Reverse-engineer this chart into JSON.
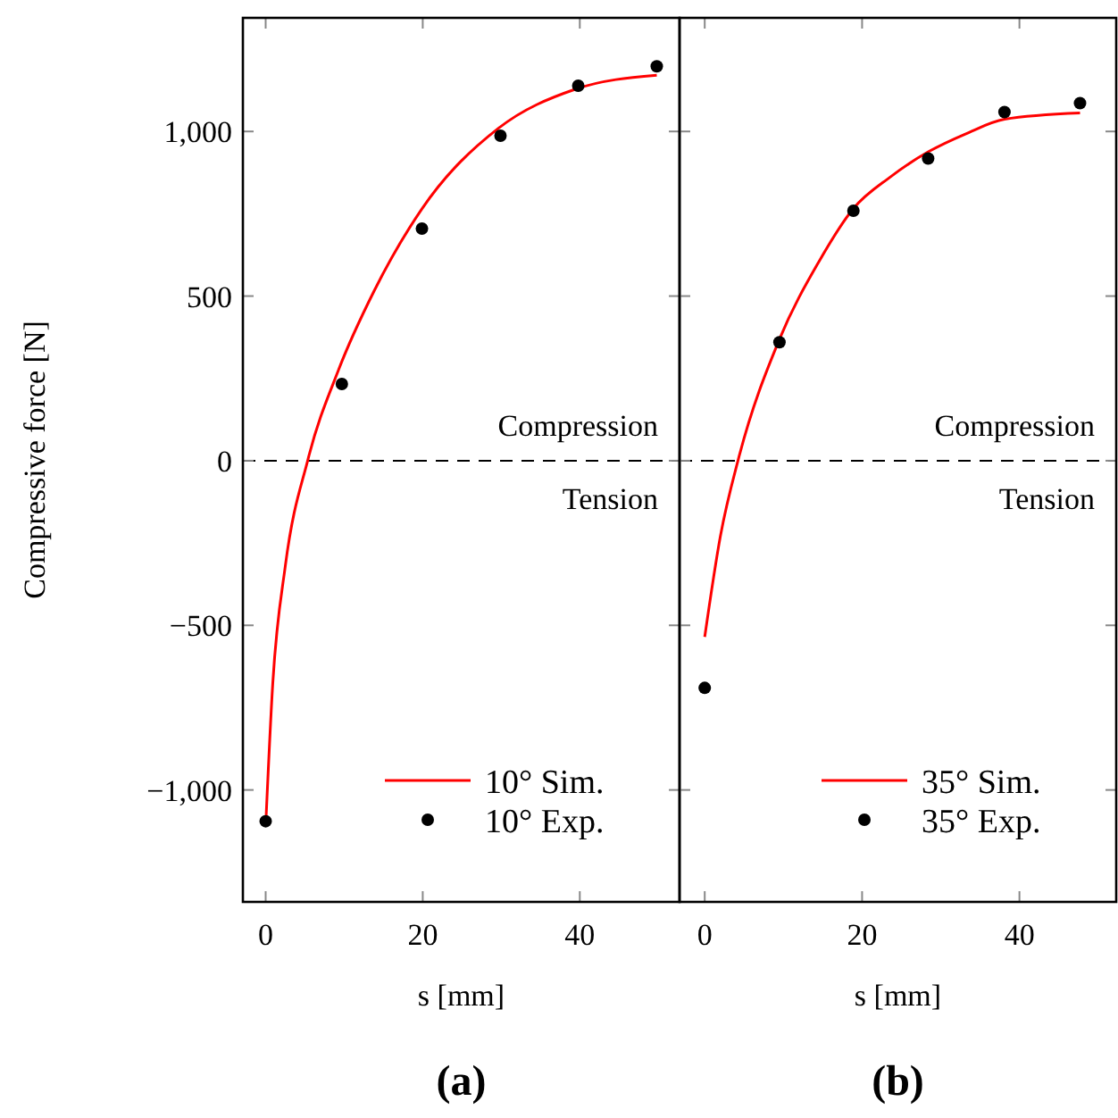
{
  "chart_data": [
    {
      "type": "line",
      "title": "(a)",
      "xlabel": "s [mm]",
      "ylabel": "Compressive force [N]",
      "xlim": [
        -2.9,
        52.7
      ],
      "xticks": [
        0,
        20,
        40
      ],
      "ylim": [
        -1340,
        1345
      ],
      "yticks": [
        {
          "value": -1000,
          "label": "−1,000"
        },
        {
          "value": -500,
          "label": "−500"
        },
        0,
        500,
        {
          "value": 1000,
          "label": "1,000"
        }
      ],
      "legend": "bottom right",
      "annotations": [
        "Compression",
        "Tension"
      ],
      "ref_lines": [
        {
          "axis": "y",
          "value": 0,
          "color": "#000000",
          "line_style": "dashed"
        }
      ],
      "series": [
        {
          "name": "10° Sim.",
          "color": "#ff0000",
          "line_style": "solid",
          "marker": "none",
          "x": [
            0,
            0.9,
            2.5,
            5.4,
            9.3,
            13.8,
            19.9,
            29.6,
            39.4,
            49.8
          ],
          "values": [
            -1112,
            -678,
            -320,
            5,
            277,
            515,
            765,
            1009,
            1128,
            1171
          ]
        },
        {
          "name": "10° Exp.",
          "type": "scatter",
          "color": "#000000",
          "marker": "circle",
          "x": [
            0,
            9.7,
            19.9,
            29.9,
            39.8,
            49.8
          ],
          "values": [
            -1095,
            233,
            705,
            987,
            1139,
            1198
          ]
        }
      ]
    },
    {
      "type": "line",
      "title": "(b)",
      "xlabel": "s [mm]",
      "xlim": [
        -3.2,
        52.3
      ],
      "xticks": [
        0,
        20,
        40
      ],
      "ylim": [
        -1340,
        1345
      ],
      "yticks": [
        -1000,
        -500,
        0,
        500,
        1000
      ],
      "tick_labels": "x",
      "legend": "bottom right",
      "annotations": [
        "Compression",
        "Tension"
      ],
      "ref_lines": [
        {
          "axis": "y",
          "value": 0,
          "color": "#000000",
          "line_style": "dashed"
        }
      ],
      "series": [
        {
          "name": "35° Sim.",
          "color": "#ff0000",
          "line_style": "solid",
          "marker": "none",
          "x": [
            0,
            2,
            4.3,
            9.5,
            14.5,
            18.9,
            23.6,
            28.4,
            33.2,
            38.1,
            47.7
          ],
          "values": [
            -535,
            -228,
            7,
            369,
            604,
            766,
            862,
            938,
            993,
            1037,
            1056
          ]
        },
        {
          "name": "35° Exp.",
          "type": "scatter",
          "color": "#000000",
          "marker": "circle",
          "x": [
            0,
            9.5,
            18.9,
            28.4,
            38.1,
            47.7
          ],
          "values": [
            -690,
            360,
            759,
            918,
            1059,
            1086
          ]
        }
      ]
    }
  ]
}
